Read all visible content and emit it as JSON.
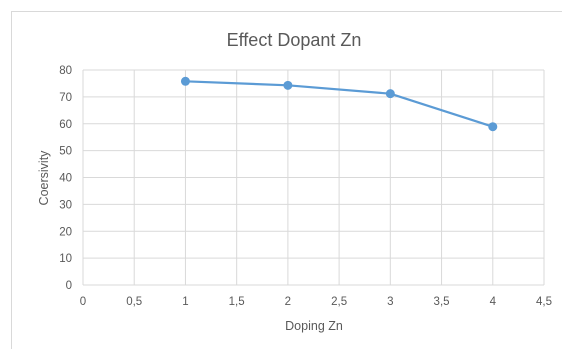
{
  "chart_data": {
    "type": "line",
    "title": "Effect Dopant Zn",
    "xlabel": "Doping Zn",
    "ylabel": "Coersivity",
    "xlim": [
      0,
      4.5
    ],
    "ylim": [
      0,
      80
    ],
    "x_ticks": [
      "0",
      "0,5",
      "1",
      "1,5",
      "2",
      "2,5",
      "3",
      "3,5",
      "4",
      "4,5"
    ],
    "y_ticks": [
      "0",
      "10",
      "20",
      "30",
      "40",
      "50",
      "60",
      "70",
      "80"
    ],
    "grid": true,
    "legend": "none",
    "series": [
      {
        "color": "#5b9bd5",
        "x": [
          1,
          2,
          3,
          4
        ],
        "y": [
          75.8,
          74.3,
          71.2,
          58.9
        ]
      }
    ]
  }
}
